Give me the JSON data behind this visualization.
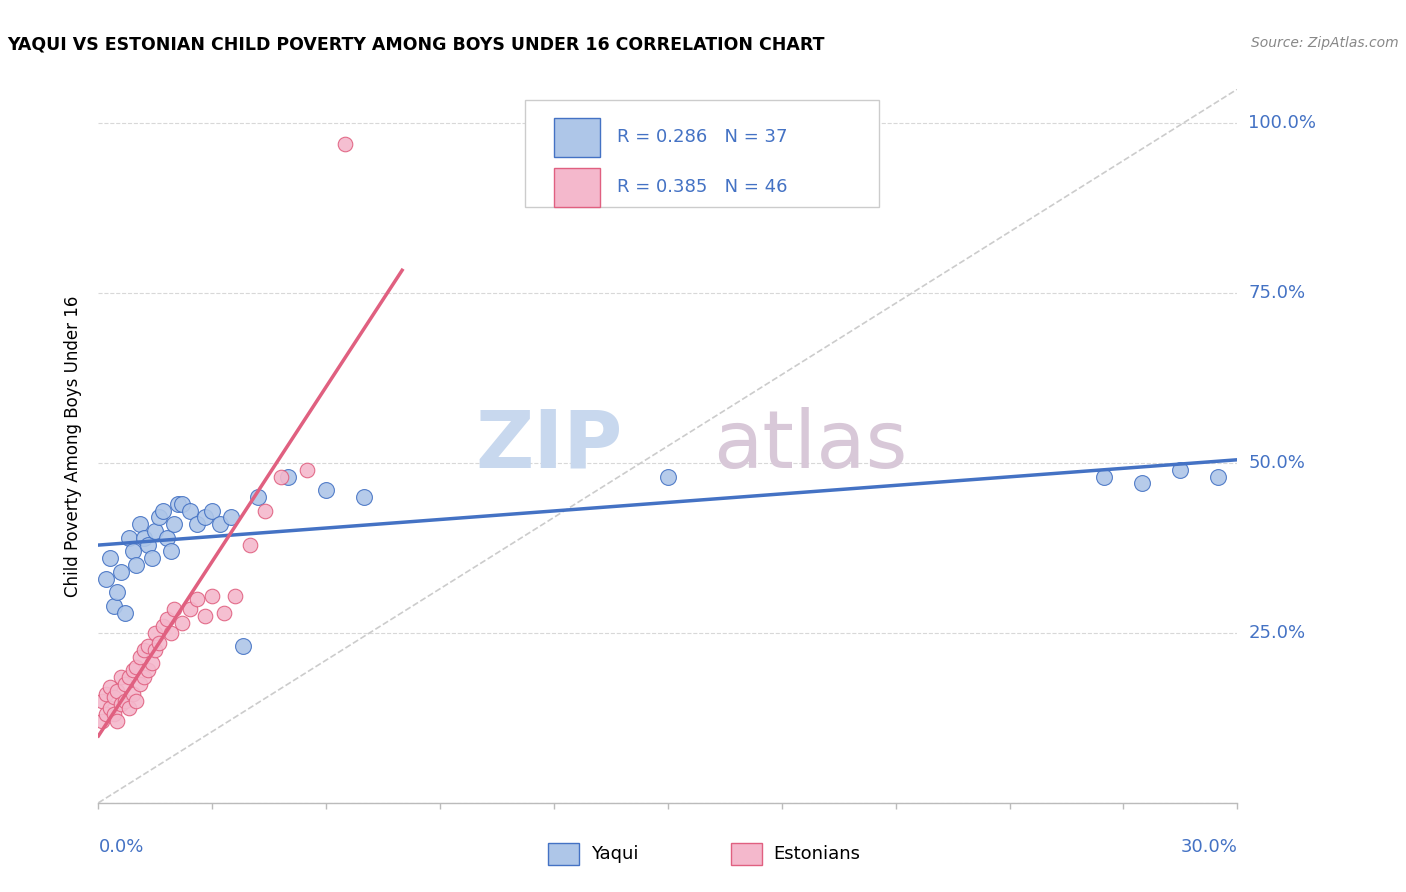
{
  "title": "YAQUI VS ESTONIAN CHILD POVERTY AMONG BOYS UNDER 16 CORRELATION CHART",
  "source": "Source: ZipAtlas.com",
  "ylabel": "Child Poverty Among Boys Under 16",
  "xmin": 0.0,
  "xmax": 0.3,
  "ymin": 0.0,
  "ymax": 1.05,
  "yaqui_fill_color": "#aec6e8",
  "yaqui_edge_color": "#4472c4",
  "estonian_fill_color": "#f4b8cc",
  "estonian_edge_color": "#e06080",
  "yaqui_line_color": "#4472c4",
  "estonian_line_color": "#e06080",
  "diagonal_color": "#cccccc",
  "label_color": "#4472c4",
  "R_yaqui": 0.286,
  "N_yaqui": 37,
  "R_estonian": 0.385,
  "N_estonian": 46,
  "watermark_zip": "ZIP",
  "watermark_atlas": "atlas",
  "yaqui_x": [
    0.002,
    0.003,
    0.004,
    0.005,
    0.006,
    0.007,
    0.008,
    0.009,
    0.01,
    0.011,
    0.012,
    0.013,
    0.014,
    0.015,
    0.016,
    0.017,
    0.018,
    0.019,
    0.02,
    0.021,
    0.022,
    0.024,
    0.026,
    0.028,
    0.03,
    0.032,
    0.035,
    0.038,
    0.042,
    0.05,
    0.06,
    0.07,
    0.15,
    0.265,
    0.275,
    0.285,
    0.295
  ],
  "yaqui_y": [
    0.33,
    0.36,
    0.29,
    0.31,
    0.34,
    0.28,
    0.39,
    0.37,
    0.35,
    0.41,
    0.39,
    0.38,
    0.36,
    0.4,
    0.42,
    0.43,
    0.39,
    0.37,
    0.41,
    0.44,
    0.44,
    0.43,
    0.41,
    0.42,
    0.43,
    0.41,
    0.42,
    0.23,
    0.45,
    0.48,
    0.46,
    0.45,
    0.48,
    0.48,
    0.47,
    0.49,
    0.48
  ],
  "estonian_x": [
    0.001,
    0.001,
    0.002,
    0.002,
    0.003,
    0.003,
    0.004,
    0.004,
    0.005,
    0.005,
    0.006,
    0.006,
    0.007,
    0.007,
    0.008,
    0.008,
    0.009,
    0.009,
    0.01,
    0.01,
    0.011,
    0.011,
    0.012,
    0.012,
    0.013,
    0.013,
    0.014,
    0.015,
    0.015,
    0.016,
    0.017,
    0.018,
    0.019,
    0.02,
    0.022,
    0.024,
    0.026,
    0.028,
    0.03,
    0.033,
    0.036,
    0.04,
    0.044,
    0.048,
    0.055,
    0.065
  ],
  "estonian_y": [
    0.12,
    0.15,
    0.13,
    0.16,
    0.14,
    0.17,
    0.13,
    0.155,
    0.12,
    0.165,
    0.145,
    0.185,
    0.15,
    0.175,
    0.14,
    0.185,
    0.16,
    0.195,
    0.15,
    0.2,
    0.175,
    0.215,
    0.185,
    0.225,
    0.195,
    0.23,
    0.205,
    0.225,
    0.25,
    0.235,
    0.26,
    0.27,
    0.25,
    0.285,
    0.265,
    0.285,
    0.3,
    0.275,
    0.305,
    0.28,
    0.305,
    0.38,
    0.43,
    0.48,
    0.49,
    0.97
  ]
}
